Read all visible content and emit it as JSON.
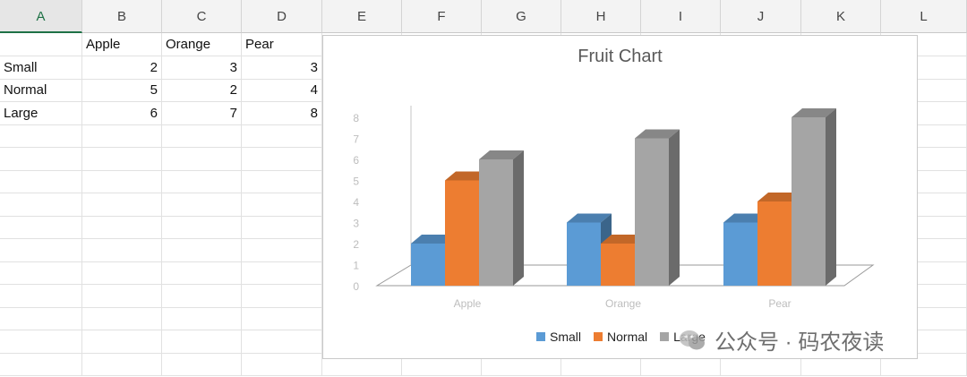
{
  "spreadsheet": {
    "columns": [
      "A",
      "B",
      "C",
      "D",
      "E",
      "F",
      "G",
      "H",
      "I",
      "J",
      "K",
      "L"
    ],
    "active_column": "A",
    "rows": [
      [
        "",
        "Apple",
        "Orange",
        "Pear"
      ],
      [
        "Small",
        "2",
        "3",
        "3"
      ],
      [
        "Normal",
        "5",
        "2",
        "4"
      ],
      [
        "Large",
        "6",
        "7",
        "8"
      ]
    ]
  },
  "chart_data": {
    "type": "bar",
    "style": "3d-clustered-column",
    "title": "Fruit Chart",
    "categories": [
      "Apple",
      "Orange",
      "Pear"
    ],
    "series": [
      {
        "name": "Small",
        "values": [
          2,
          3,
          3
        ],
        "color": "#5b9bd5"
      },
      {
        "name": "Normal",
        "values": [
          5,
          2,
          4
        ],
        "color": "#ed7d31"
      },
      {
        "name": "Large",
        "values": [
          6,
          7,
          8
        ],
        "color": "#a5a5a5"
      }
    ],
    "ylim": [
      0,
      8
    ],
    "yticks": [
      "0",
      "1",
      "2",
      "3",
      "4",
      "5",
      "6",
      "7",
      "8"
    ],
    "xlabel": "",
    "ylabel": "",
    "legend": "bottom"
  },
  "watermark": {
    "text": "公众号 · 码农夜读"
  }
}
